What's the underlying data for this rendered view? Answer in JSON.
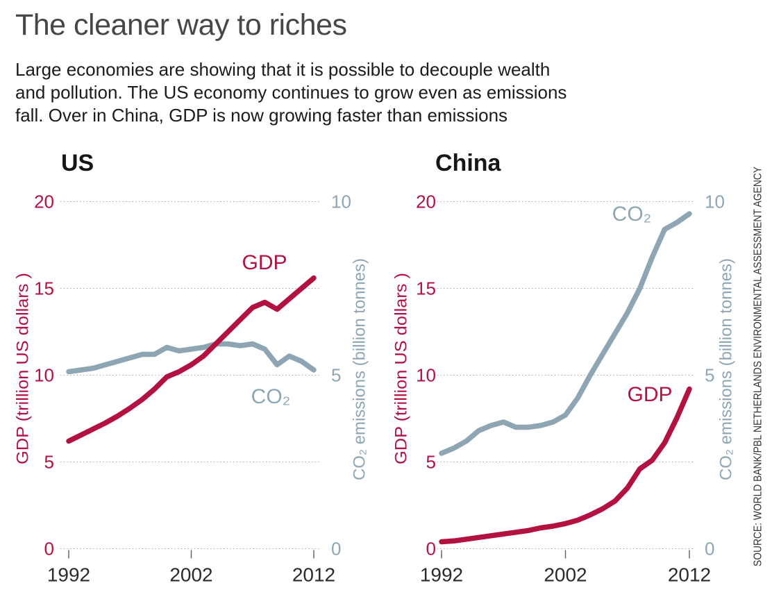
{
  "header": {
    "title": "The cleaner way to riches",
    "subtitle_lines": [
      "Large economies are showing that it is possible to decouple wealth",
      "and pollution. The US economy continues to grow even as emissions",
      "fall. Over in China, GDP is now growing faster than emissions"
    ]
  },
  "source": "SOURCE: WORLD BANK/PBL NETHERLANDS ENVIRONMENTAL ASSESSMENT AGENCY",
  "colors": {
    "gdp": "#b31240",
    "co2": "#8ea6b4",
    "grid": "#a6a6a6",
    "axis_tick": "#5f5f5f",
    "x_label": "#2b2b2b",
    "chart_title": "#161616",
    "title": "#474747",
    "text": "#1b1b1b",
    "source": "#333333"
  },
  "axes": {
    "left_label": "GDP (trillion US dollars )",
    "right_label": "CO₂ emissions (billion tonnes)",
    "left_range": [
      0,
      20
    ],
    "right_range": [
      0,
      10
    ],
    "left_ticks": [
      20,
      15,
      10,
      5,
      0
    ],
    "right_ticks": [
      10,
      5,
      0
    ],
    "x_ticks": [
      1992,
      2002,
      2012
    ],
    "grid": "horizontal dotted"
  },
  "chart_data": [
    {
      "type": "line",
      "title": "US",
      "x": [
        1992,
        1993,
        1994,
        1995,
        1996,
        1997,
        1998,
        1999,
        2000,
        2001,
        2002,
        2003,
        2004,
        2005,
        2006,
        2007,
        2008,
        2009,
        2010,
        2011,
        2012
      ],
      "series": [
        {
          "name": "GDP",
          "axis": "left",
          "unit": "trillion US dollars",
          "color_key": "gdp",
          "values": [
            6.2,
            6.55,
            6.9,
            7.25,
            7.65,
            8.1,
            8.6,
            9.2,
            9.9,
            10.2,
            10.6,
            11.1,
            11.8,
            12.5,
            13.2,
            13.9,
            14.2,
            13.8,
            14.4,
            15.0,
            15.6
          ]
        },
        {
          "name": "CO₂",
          "axis": "right",
          "unit": "billion tonnes",
          "color_key": "co2",
          "values": [
            5.1,
            5.15,
            5.2,
            5.3,
            5.4,
            5.5,
            5.6,
            5.6,
            5.8,
            5.7,
            5.75,
            5.8,
            5.9,
            5.9,
            5.85,
            5.9,
            5.75,
            5.3,
            5.55,
            5.4,
            5.15
          ]
        }
      ]
    },
    {
      "type": "line",
      "title": "China",
      "x": [
        1992,
        1993,
        1994,
        1995,
        1996,
        1997,
        1998,
        1999,
        2000,
        2001,
        2002,
        2003,
        2004,
        2005,
        2006,
        2007,
        2008,
        2009,
        2010,
        2011,
        2012
      ],
      "series": [
        {
          "name": "GDP",
          "axis": "left",
          "unit": "trillion US dollars",
          "color_key": "gdp",
          "values": [
            0.4,
            0.45,
            0.55,
            0.65,
            0.75,
            0.85,
            0.95,
            1.05,
            1.2,
            1.3,
            1.45,
            1.65,
            1.95,
            2.3,
            2.75,
            3.5,
            4.6,
            5.1,
            6.1,
            7.55,
            9.2
          ]
        },
        {
          "name": "CO₂",
          "axis": "right",
          "unit": "billion tonnes",
          "color_key": "co2",
          "values": [
            2.75,
            2.9,
            3.1,
            3.4,
            3.55,
            3.65,
            3.5,
            3.5,
            3.55,
            3.65,
            3.85,
            4.35,
            5.0,
            5.6,
            6.2,
            6.8,
            7.5,
            8.4,
            9.2,
            9.4,
            9.65
          ]
        }
      ]
    }
  ]
}
